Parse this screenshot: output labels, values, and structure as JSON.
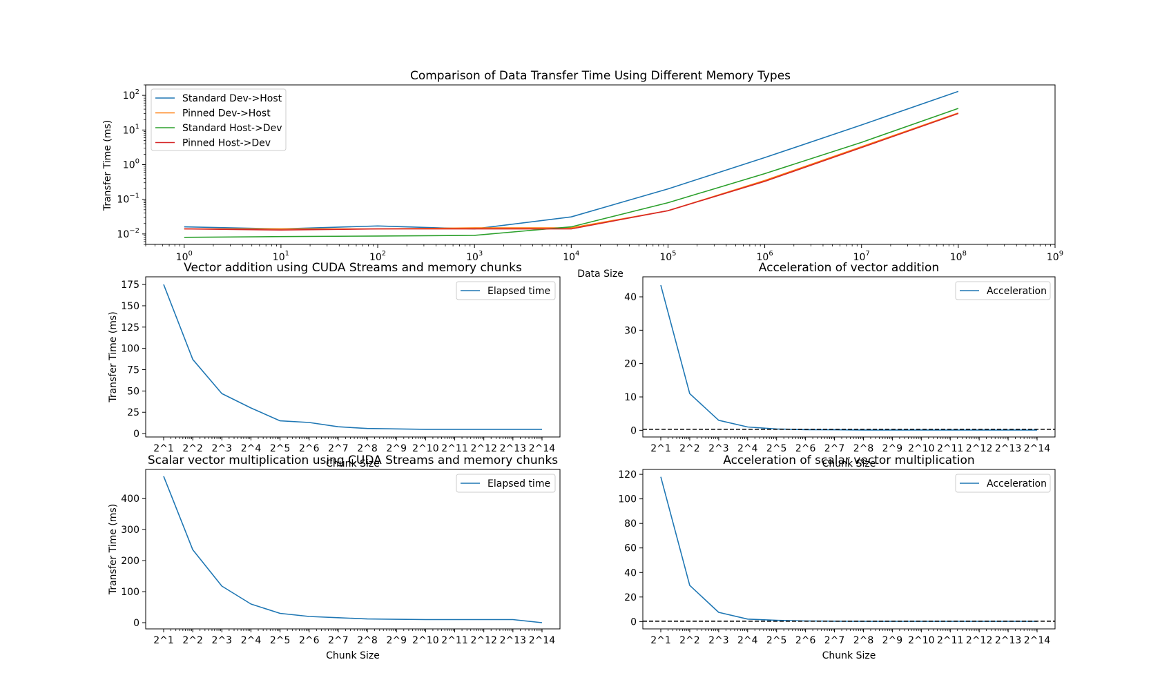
{
  "chart_data": [
    {
      "id": "top",
      "type": "line",
      "title": "Comparison of Data Transfer Time Using Different Memory Types",
      "xlabel": "Data Size",
      "ylabel": "Transfer Time (ms)",
      "xscale": "log",
      "yscale": "log",
      "xlim": [
        0.4,
        1000000000
      ],
      "ylim": [
        0.005,
        200
      ],
      "x": [
        1,
        10,
        100,
        1000,
        10000,
        100000,
        1000000,
        10000000,
        100000000
      ],
      "xtick_exponents": [
        "0",
        "1",
        "2",
        "3",
        "4",
        "5",
        "6",
        "7",
        "8",
        "9"
      ],
      "ytick_exponents": [
        "−2",
        "−1",
        "0",
        "1",
        "2"
      ],
      "legend_loc": "upper-left",
      "series": [
        {
          "name": "Standard Dev->Host",
          "color": "#1f77b4",
          "values": [
            0.016,
            0.014,
            0.017,
            0.014,
            0.031,
            0.2,
            1.6,
            14,
            130
          ]
        },
        {
          "name": "Pinned Dev->Host",
          "color": "#ff7f0e",
          "values": [
            0.014,
            0.014,
            0.014,
            0.015,
            0.015,
            0.047,
            0.35,
            3.3,
            31
          ]
        },
        {
          "name": "Standard Host->Dev",
          "color": "#2ca02c",
          "values": [
            0.008,
            0.0084,
            0.0087,
            0.0091,
            0.016,
            0.08,
            0.55,
            4.4,
            42
          ]
        },
        {
          "name": "Pinned Host->Dev",
          "color": "#d62728",
          "values": [
            0.014,
            0.013,
            0.014,
            0.014,
            0.014,
            0.047,
            0.33,
            3.1,
            30
          ]
        }
      ]
    },
    {
      "id": "va",
      "type": "line",
      "title": "Vector addition using CUDA Streams and memory chunks",
      "xlabel": "Chunk Size",
      "ylabel": "Transfer Time (ms)",
      "categories": [
        "2^1",
        "2^2",
        "2^3",
        "2^4",
        "2^5",
        "2^6",
        "2^7",
        "2^8",
        "2^9",
        "2^10",
        "2^11",
        "2^12",
        "2^13",
        "2^14"
      ],
      "ylim": [
        -4,
        184
      ],
      "yticks": [
        0,
        25,
        50,
        75,
        100,
        125,
        150,
        175
      ],
      "legend_loc": "upper-right",
      "series": [
        {
          "name": "Elapsed time",
          "color": "#1f77b4",
          "values": [
            175,
            87,
            47,
            30,
            15,
            13,
            8,
            6,
            5.5,
            5,
            5,
            5,
            5,
            5
          ]
        }
      ]
    },
    {
      "id": "aa",
      "type": "line",
      "title": "Acceleration of vector addition",
      "xlabel": "Chunk Size",
      "ylabel": "",
      "categories": [
        "2^1",
        "2^2",
        "2^3",
        "2^4",
        "2^5",
        "2^6",
        "2^7",
        "2^8",
        "2^9",
        "2^10",
        "2^11",
        "2^12",
        "2^13",
        "2^14"
      ],
      "ylim": [
        -2,
        46
      ],
      "yticks": [
        0,
        10,
        20,
        30,
        40
      ],
      "reference_line": 0.3,
      "legend_loc": "upper-right",
      "series": [
        {
          "name": "Acceleration",
          "color": "#1f77b4",
          "values": [
            43.5,
            11,
            3,
            1,
            0.4,
            0.2,
            0.15,
            0.1,
            0.1,
            0.1,
            0.1,
            0.1,
            0.1,
            0.1
          ]
        }
      ]
    },
    {
      "id": "sm",
      "type": "line",
      "title": "Scalar vector multiplication using CUDA Streams and memory chunks",
      "xlabel": "Chunk Size",
      "ylabel": "Transfer Time (ms)",
      "categories": [
        "2^1",
        "2^2",
        "2^3",
        "2^4",
        "2^5",
        "2^6",
        "2^7",
        "2^8",
        "2^9",
        "2^10",
        "2^11",
        "2^12",
        "2^13",
        "2^14"
      ],
      "ylim": [
        -20,
        494
      ],
      "yticks": [
        0,
        100,
        200,
        300,
        400
      ],
      "legend_loc": "upper-right",
      "series": [
        {
          "name": "Elapsed time",
          "color": "#1f77b4",
          "values": [
            472,
            235,
            118,
            60,
            30,
            20,
            16,
            12,
            11,
            10,
            10,
            10,
            10,
            0
          ]
        }
      ]
    },
    {
      "id": "as",
      "type": "line",
      "title": "Acceleration of scalar vector multiplication",
      "xlabel": "Chunk Size",
      "ylabel": "",
      "categories": [
        "2^1",
        "2^2",
        "2^3",
        "2^4",
        "2^5",
        "2^6",
        "2^7",
        "2^8",
        "2^9",
        "2^10",
        "2^11",
        "2^12",
        "2^13",
        "2^14"
      ],
      "ylim": [
        -6,
        124
      ],
      "yticks": [
        0,
        20,
        40,
        60,
        80,
        100,
        120
      ],
      "reference_line": 0.3,
      "legend_loc": "upper-right",
      "series": [
        {
          "name": "Acceleration",
          "color": "#1f77b4",
          "values": [
            118,
            29.5,
            7.5,
            2,
            1,
            0.5,
            0.3,
            0.2,
            0.2,
            0.2,
            0.2,
            0.2,
            0.2,
            0.2
          ]
        }
      ]
    }
  ]
}
